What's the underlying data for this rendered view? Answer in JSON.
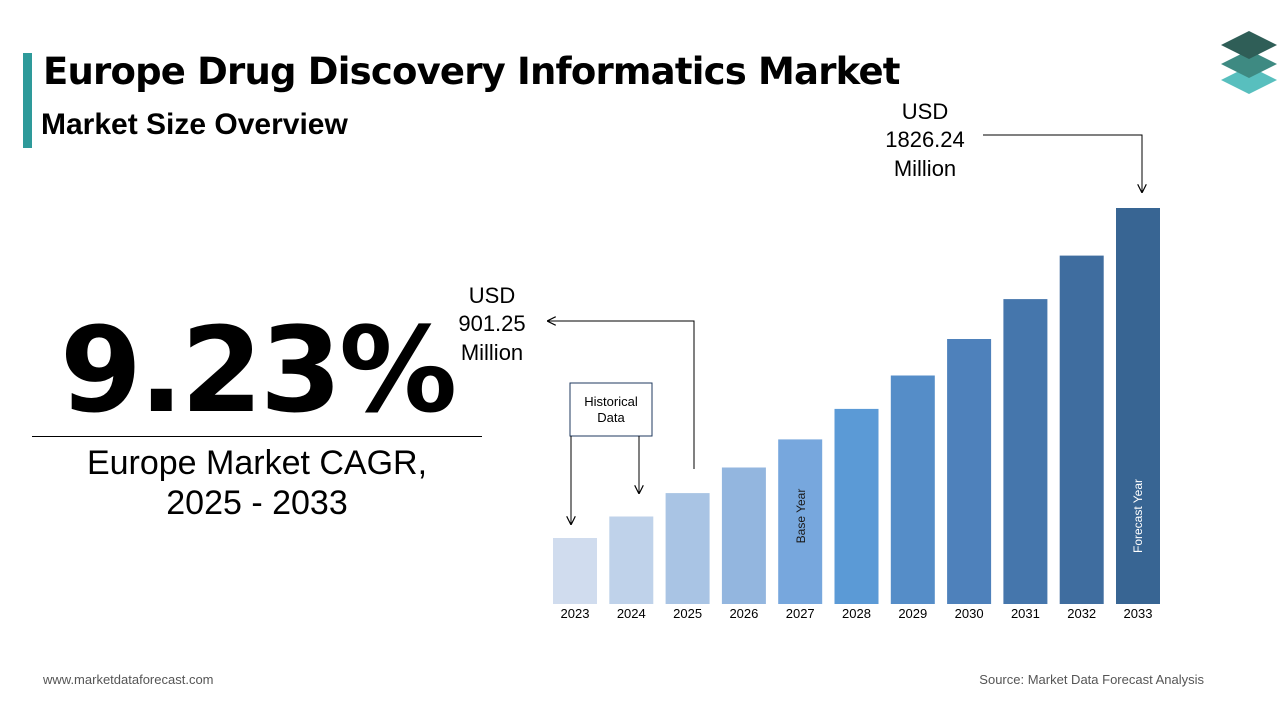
{
  "header": {
    "title": "Europe Drug Discovery Informatics Market",
    "subtitle": "Market Size Overview"
  },
  "cagr": {
    "value": "9.23%",
    "label_line1": "Europe Market CAGR,",
    "label_line2": "2025 - 2033"
  },
  "footer": {
    "website": "www.marketdataforecast.com",
    "source": "Source: Market Data Forecast Analysis"
  },
  "colors": {
    "accent": "#2e9a9a",
    "logo_dark": "#2f5e57",
    "logo_mid": "#3e8a82",
    "logo_light": "#58bfbe"
  },
  "logo_icon": "stacked-layers-icon",
  "annotations": {
    "historical_box": [
      "Historical",
      "Data"
    ],
    "base_value": [
      "USD",
      "901.25",
      "Million"
    ],
    "forecast_value": [
      "USD",
      "1826.24",
      "Million"
    ],
    "base_year_label": "Base Year",
    "forecast_year_label": "Forecast Year"
  },
  "chart_data": {
    "type": "bar",
    "title": "",
    "xlabel": "",
    "ylabel": "",
    "categories": [
      "2023",
      "2024",
      "2025",
      "2026",
      "2027",
      "2028",
      "2029",
      "2030",
      "2031",
      "2032",
      "2033"
    ],
    "values": [
      755.5,
      825.3,
      901.25,
      984.4,
      1075.3,
      1174.5,
      1282.9,
      1401.3,
      1530.6,
      1671.9,
      1826.24
    ],
    "unit": "USD Million",
    "bar_colors": [
      "#d0dcee",
      "#bfd2ea",
      "#a9c4e4",
      "#93b6df",
      "#77a7dd",
      "#5b9ad6",
      "#558dc8",
      "#4e81bb",
      "#4576ac",
      "#3f6d9f",
      "#386593"
    ],
    "grid": false,
    "legend": "none"
  }
}
